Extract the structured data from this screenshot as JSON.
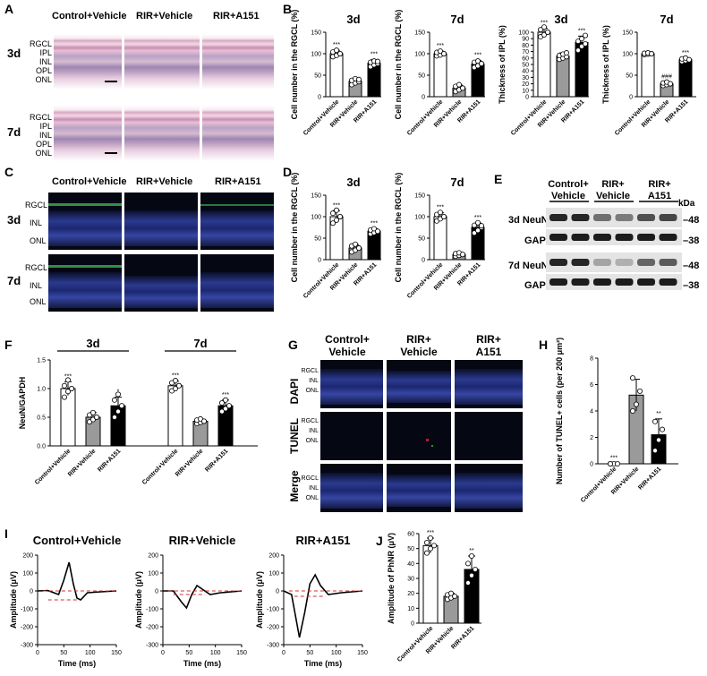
{
  "panels": {
    "A": "A",
    "B": "B",
    "C": "C",
    "D": "D",
    "E": "E",
    "F": "F",
    "G": "G",
    "H": "H",
    "I": "I",
    "J": "J"
  },
  "groups": {
    "ctrl": "Control+Vehicle",
    "rir": "RIR+Vehicle",
    "a151": "RIR+A151"
  },
  "groups_split": {
    "ctrl": [
      "Control+",
      "Vehicle"
    ],
    "rir": [
      "RIR+",
      "Vehicle"
    ],
    "a151": [
      "RIR+",
      "A151"
    ]
  },
  "timepoints": {
    "d3": "3d",
    "d7": "7d"
  },
  "retina_layers_A": [
    "RGCL",
    "IPL",
    "INL",
    "OPL",
    "ONL"
  ],
  "retina_layers_C": [
    "RGCL",
    "INL",
    "ONL"
  ],
  "western": {
    "kda": "kDa",
    "rows": [
      {
        "label": "3d  NeuN",
        "marker": "–48"
      },
      {
        "label": "GAPDH",
        "marker": "–38"
      },
      {
        "label": "7d  NeuN",
        "marker": "–48"
      },
      {
        "label": "GAPDH",
        "marker": "–38"
      }
    ]
  },
  "stains_G": [
    "DAPI",
    "TUNEL",
    "Merge"
  ],
  "chart_data": [
    {
      "id": "B1",
      "type": "bar",
      "title": "3d",
      "ylabel": "Cell number in the RGCL (%)",
      "ylim": [
        0,
        150
      ],
      "yticks": [
        0,
        50,
        100,
        150
      ],
      "categories": [
        "Control+Vehicle",
        "RIR+Vehicle",
        "RIR+A151"
      ],
      "values": [
        100,
        36,
        78
      ],
      "errors": [
        8,
        7,
        8
      ],
      "sig": [
        "***",
        "",
        "***"
      ],
      "points": [
        [
          93,
          96,
          100,
          104,
          108,
          100
        ],
        [
          28,
          32,
          35,
          38,
          42,
          40
        ],
        [
          70,
          74,
          77,
          80,
          83,
          82
        ]
      ]
    },
    {
      "id": "B2",
      "type": "bar",
      "title": "7d",
      "ylabel": "Cell number in the RGCL (%)",
      "ylim": [
        0,
        150
      ],
      "yticks": [
        0,
        50,
        100,
        150
      ],
      "categories": [
        "Control+Vehicle",
        "RIR+Vehicle",
        "RIR+A151"
      ],
      "values": [
        100,
        20,
        76
      ],
      "errors": [
        6,
        7,
        8
      ],
      "sig": [
        "***",
        "",
        "***"
      ],
      "points": [
        [
          95,
          97,
          100,
          103,
          106,
          100
        ],
        [
          12,
          16,
          20,
          24,
          28,
          20
        ],
        [
          68,
          72,
          76,
          80,
          83,
          77
        ]
      ]
    },
    {
      "id": "B3",
      "type": "bar",
      "title": "3d",
      "ylabel": "Thickness of IPL (%)",
      "ylim": [
        0,
        100
      ],
      "yticks": [
        0,
        10,
        20,
        30,
        40,
        50,
        60,
        70,
        80,
        90,
        100
      ],
      "categories": [
        "Control+Vehicle",
        "RIR+Vehicle",
        "RIR+A151"
      ],
      "values": [
        100,
        63,
        84
      ],
      "errors": [
        6,
        5,
        10
      ],
      "sig": [
        "***",
        "",
        "***"
      ],
      "points": [
        [
          93,
          96,
          100,
          104,
          108,
          100
        ],
        [
          58,
          60,
          62,
          64,
          66,
          68
        ],
        [
          72,
          78,
          82,
          86,
          90,
          95
        ]
      ]
    },
    {
      "id": "B4",
      "type": "bar",
      "title": "7d",
      "ylabel": "Thickness of IPL (%)",
      "ylim": [
        0,
        150
      ],
      "yticks": [
        0,
        50,
        100,
        150
      ],
      "categories": [
        "Control+Vehicle",
        "RIR+Vehicle",
        "RIR+A151"
      ],
      "values": [
        100,
        30,
        86
      ],
      "errors": [
        3,
        4,
        4
      ],
      "sig": [
        "",
        "###",
        "***"
      ],
      "points": [
        [
          98,
          99,
          100,
          101,
          102,
          100
        ],
        [
          26,
          28,
          30,
          32,
          34,
          30
        ],
        [
          82,
          84,
          86,
          88,
          90,
          86
        ]
      ]
    },
    {
      "id": "D1",
      "type": "bar",
      "title": "3d",
      "ylabel": "Cell number in the RGCL (%)",
      "ylim": [
        0,
        150
      ],
      "yticks": [
        0,
        50,
        100,
        150
      ],
      "categories": [
        "Control+Vehicle",
        "RIR+Vehicle",
        "RIR+A151"
      ],
      "values": [
        100,
        27,
        66
      ],
      "errors": [
        14,
        8,
        6
      ],
      "sig": [
        "***",
        "",
        "***"
      ],
      "points": [
        [
          85,
          92,
          100,
          108,
          115,
          100
        ],
        [
          18,
          22,
          27,
          32,
          36,
          27
        ],
        [
          60,
          63,
          66,
          69,
          72,
          66
        ]
      ]
    },
    {
      "id": "D2",
      "type": "bar",
      "title": "7d",
      "ylabel": "Cell number in the RGCL (%)",
      "ylim": [
        0,
        150
      ],
      "yticks": [
        0,
        50,
        100,
        150
      ],
      "categories": [
        "Control+Vehicle",
        "RIR+Vehicle",
        "RIR+A151"
      ],
      "values": [
        100,
        12,
        75
      ],
      "errors": [
        9,
        4,
        10
      ],
      "sig": [
        "***",
        "",
        "***"
      ],
      "points": [
        [
          90,
          95,
          100,
          105,
          110,
          100
        ],
        [
          8,
          10,
          12,
          14,
          16,
          12
        ],
        [
          62,
          68,
          75,
          80,
          86,
          79
        ]
      ]
    },
    {
      "id": "F",
      "type": "bar",
      "ylabel": "NeuN/GAPDH",
      "ylim": [
        0,
        1.5
      ],
      "yticks": [
        0.0,
        0.5,
        1.0,
        1.5
      ],
      "groups": [
        "3d",
        "7d"
      ],
      "categories": [
        "Control+Vehicle",
        "RIR+Vehicle",
        "RIR+A151",
        "Control+Vehicle",
        "RIR+Vehicle",
        "RIR+A151"
      ],
      "values": [
        1.0,
        0.5,
        0.7,
        1.05,
        0.43,
        0.7
      ],
      "errors": [
        0.12,
        0.08,
        0.15,
        0.08,
        0.04,
        0.1
      ],
      "sig": [
        "***",
        "",
        "*",
        "***",
        "",
        "***"
      ],
      "points": [
        [
          0.85,
          0.95,
          1.0,
          1.05,
          1.15,
          1.0
        ],
        [
          0.42,
          0.46,
          0.5,
          0.54,
          0.58,
          0.5
        ],
        [
          0.5,
          0.6,
          0.7,
          0.8,
          0.9,
          0.7
        ],
        [
          0.96,
          1.0,
          1.05,
          1.1,
          1.14,
          1.05
        ],
        [
          0.39,
          0.41,
          0.43,
          0.45,
          0.47,
          0.43
        ],
        [
          0.6,
          0.65,
          0.7,
          0.75,
          0.8,
          0.7
        ]
      ]
    },
    {
      "id": "H",
      "type": "bar",
      "ylabel": "Number of TUNEL+ cells (per 200 μm²)",
      "ylim": [
        0,
        8
      ],
      "yticks": [
        0,
        2,
        4,
        6,
        8
      ],
      "categories": [
        "Control+Vehicle",
        "RIR+Vehicle",
        "RIR+A151"
      ],
      "values": [
        0,
        5.2,
        2.2
      ],
      "errors": [
        0.05,
        1.2,
        1.2
      ],
      "sig": [
        "***",
        "",
        "**"
      ],
      "points": [
        [
          0,
          0,
          0,
          0
        ],
        [
          4,
          4.5,
          5.5,
          6.5
        ],
        [
          1,
          1.8,
          2.6,
          3.2
        ]
      ]
    },
    {
      "id": "J",
      "type": "bar",
      "ylabel": "Amplitude of PhNR (μV)",
      "ylim": [
        0,
        60
      ],
      "yticks": [
        0,
        10,
        20,
        30,
        40,
        50,
        60
      ],
      "categories": [
        "Control+Vehicle",
        "RIR+Vehicle",
        "RIR+A151"
      ],
      "values": [
        52,
        18,
        36
      ],
      "errors": [
        5,
        2,
        9
      ],
      "sig": [
        "***",
        "",
        "**"
      ],
      "points": [
        [
          47,
          50,
          52,
          54,
          57
        ],
        [
          16,
          17,
          18,
          19,
          20
        ],
        [
          27,
          32,
          36,
          40,
          45
        ]
      ]
    },
    {
      "id": "I1",
      "type": "line",
      "title": "Control+Vehicle",
      "xlabel": "Time (ms)",
      "ylabel": "Amplitude (μV)",
      "xlim": [
        0,
        150
      ],
      "ylim": [
        -300,
        200
      ],
      "xticks": [
        0,
        50,
        100,
        150
      ],
      "yticks": [
        -300,
        -200,
        -100,
        0,
        100,
        200
      ]
    },
    {
      "id": "I2",
      "type": "line",
      "title": "RIR+Vehicle",
      "xlabel": "Time (ms)",
      "ylabel": "Amplitude (μV)",
      "xlim": [
        0,
        150
      ],
      "ylim": [
        -300,
        200
      ],
      "xticks": [
        0,
        50,
        100,
        150
      ],
      "yticks": [
        -300,
        -200,
        -100,
        0,
        100,
        200
      ]
    },
    {
      "id": "I3",
      "type": "line",
      "title": "RIR+A151",
      "xlabel": "Time (ms)",
      "ylabel": "Amplitude (μV)",
      "xlim": [
        0,
        150
      ],
      "ylim": [
        -300,
        200
      ],
      "xticks": [
        0,
        50,
        100,
        150
      ],
      "yticks": [
        -300,
        -200,
        -100,
        0,
        100,
        200
      ]
    }
  ]
}
